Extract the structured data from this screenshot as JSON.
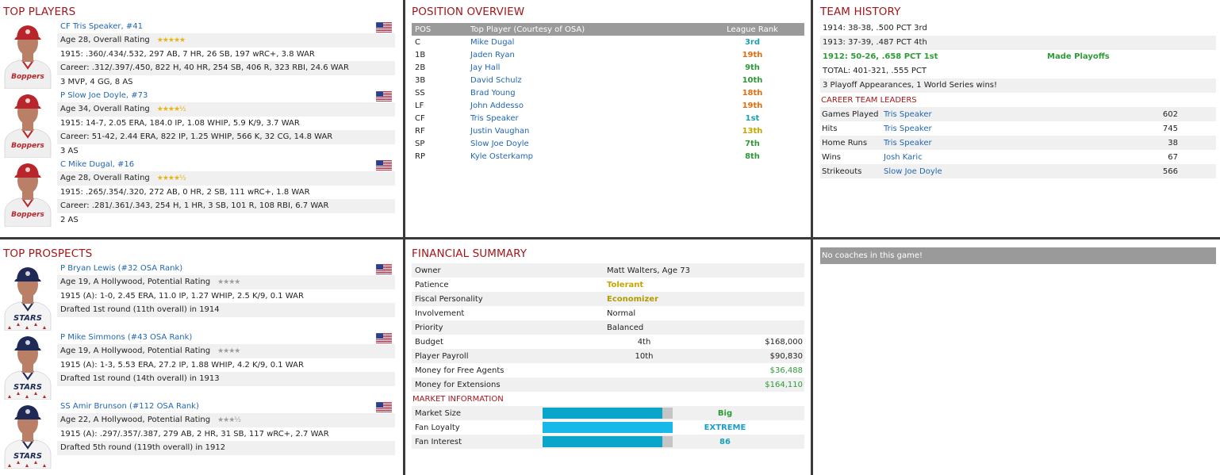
{
  "top_players": {
    "title": "TOP PLAYERS",
    "players": [
      {
        "name": "CF Tris Speaker, #41",
        "age_line": "Age 28, Overall Rating",
        "stars": "★★★★★",
        "season": "1915: .360/.434/.532, 297 AB, 7 HR, 26 SB, 197 wRC+, 3.8 WAR",
        "career": "Career: .312/.397/.450, 822 H, 40 HR, 254 SB, 406 R, 323 RBI, 24.6 WAR",
        "awards": "3 MVP, 4 GG, 8 AS",
        "team_text": "Boppers"
      },
      {
        "name": "P Slow Joe Doyle, #73",
        "age_line": "Age 34, Overall Rating",
        "stars": "★★★★½",
        "season": "1915: 14-7, 2.05 ERA, 184.0 IP, 1.08 WHIP, 5.9 K/9, 3.7 WAR",
        "career": "Career: 51-42, 2.44 ERA, 822 IP, 1.25 WHIP, 566 K, 32 CG, 14.8 WAR",
        "awards": "3 AS",
        "team_text": "Boppers"
      },
      {
        "name": "C Mike Dugal, #16",
        "age_line": "Age 28, Overall Rating",
        "stars": "★★★★½",
        "season": "1915: .265/.354/.320, 272 AB, 0 HR, 2 SB, 111 wRC+, 1.8 WAR",
        "career": "Career: .281/.361/.343, 254 H, 1 HR, 3 SB, 101 R, 108 RBI, 6.7 WAR",
        "awards": "2 AS",
        "team_text": "Boppers"
      }
    ]
  },
  "top_prospects": {
    "title": "TOP PROSPECTS",
    "prospects": [
      {
        "name": "P Bryan Lewis (#32 OSA Rank)",
        "age_line": "Age 19, A Hollywood, Potential Rating",
        "stars": "★★★★",
        "season": "1915 (A): 1-0, 2.45 ERA, 11.0 IP, 1.27 WHIP, 2.5 K/9, 0.1 WAR",
        "draft": "Drafted 1st round (11th overall) in 1914",
        "team_text": "STARS"
      },
      {
        "name": "P Mike Simmons (#43 OSA Rank)",
        "age_line": "Age 19, A Hollywood, Potential Rating",
        "stars": "★★★★",
        "season": "1915 (A): 1-3, 5.53 ERA, 27.2 IP, 1.88 WHIP, 4.2 K/9, 0.1 WAR",
        "draft": "Drafted 1st round (14th overall) in 1913",
        "team_text": "STARS"
      },
      {
        "name": "SS Amir Brunson (#112 OSA Rank)",
        "age_line": "Age 22, A Hollywood, Potential Rating",
        "stars": "★★★½",
        "season": "1915 (A): .297/.357/.387, 279 AB, 2 HR, 31 SB, 117 wRC+, 2.7 WAR",
        "draft": "Drafted 5th round (119th overall) in 1912",
        "team_text": "STARS"
      }
    ]
  },
  "position_overview": {
    "title": "POSITION OVERVIEW",
    "headers": {
      "pos": "POS",
      "player": "Top Player (Courtesy of OSA)",
      "rank": "League Rank"
    },
    "rows": [
      {
        "pos": "C",
        "player": "Mike Dugal",
        "rank": "3rd",
        "color": "teal"
      },
      {
        "pos": "1B",
        "player": "Jaden Ryan",
        "rank": "19th",
        "color": "orange"
      },
      {
        "pos": "2B",
        "player": "Jay Hall",
        "rank": "9th",
        "color": "green"
      },
      {
        "pos": "3B",
        "player": "David Schulz",
        "rank": "10th",
        "color": "green"
      },
      {
        "pos": "SS",
        "player": "Brad Young",
        "rank": "18th",
        "color": "orange"
      },
      {
        "pos": "LF",
        "player": "John Addesso",
        "rank": "19th",
        "color": "orange"
      },
      {
        "pos": "CF",
        "player": "Tris Speaker",
        "rank": "1st",
        "color": "teal"
      },
      {
        "pos": "RF",
        "player": "Justin Vaughan",
        "rank": "13th",
        "color": "amber"
      },
      {
        "pos": "SP",
        "player": "Slow Joe Doyle",
        "rank": "7th",
        "color": "green"
      },
      {
        "pos": "RP",
        "player": "Kyle Osterkamp",
        "rank": "8th",
        "color": "green"
      }
    ]
  },
  "team_history": {
    "title": "TEAM HISTORY",
    "seasons": [
      {
        "text": "1914: 38-38, .500 PCT 3rd",
        "note": ""
      },
      {
        "text": "1913: 37-39, .487 PCT 4th",
        "note": ""
      },
      {
        "text": "1912: 50-26, .658 PCT 1st",
        "note": "Made Playoffs"
      }
    ],
    "total": "TOTAL: 401-321, .555 PCT",
    "playoffs": "3 Playoff Appearances, 1 World Series wins!",
    "leaders_title": "CAREER TEAM LEADERS",
    "leaders": [
      {
        "stat": "Games Played",
        "player": "Tris Speaker",
        "value": "602"
      },
      {
        "stat": "Hits",
        "player": "Tris Speaker",
        "value": "745"
      },
      {
        "stat": "Home Runs",
        "player": "Tris Speaker",
        "value": "38"
      },
      {
        "stat": "Wins",
        "player": "Josh Karic",
        "value": "67"
      },
      {
        "stat": "Strikeouts",
        "player": "Slow Joe Doyle",
        "value": "566"
      }
    ]
  },
  "financial": {
    "title": "FINANCIAL SUMMARY",
    "owner_label": "Owner",
    "owner_value": "Matt Walters, Age 73",
    "patience_label": "Patience",
    "patience_value": "Tolerant",
    "fiscal_label": "Fiscal Personality",
    "fiscal_value": "Economizer",
    "involvement_label": "Involvement",
    "involvement_value": "Normal",
    "priority_label": "Priority",
    "priority_value": "Balanced",
    "budget_label": "Budget",
    "budget_rank": "4th",
    "budget_value": "$168,000",
    "payroll_label": "Player Payroll",
    "payroll_rank": "10th",
    "payroll_value": "$90,830",
    "fa_label": "Money for Free Agents",
    "fa_value": "$36,488",
    "ext_label": "Money for Extensions",
    "ext_value": "$164,110",
    "market_title": "MARKET INFORMATION",
    "market": [
      {
        "label": "Market Size",
        "fill_pct": 92,
        "value": "Big",
        "bar_color": "#0aa5c8",
        "color": "green"
      },
      {
        "label": "Fan Loyalty",
        "fill_pct": 100,
        "value": "EXTREME",
        "bar_color": "#18b8e8",
        "color": "cyan"
      },
      {
        "label": "Fan Interest",
        "fill_pct": 92,
        "value": "86",
        "bar_color": "#0aa5c8",
        "color": "teal"
      }
    ]
  },
  "coaches": {
    "message": "No coaches in this game!"
  }
}
